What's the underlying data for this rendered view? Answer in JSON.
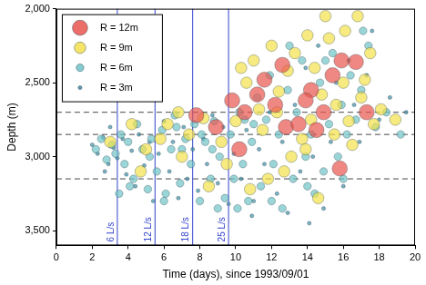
{
  "chart_data": {
    "type": "bubble",
    "x_label": "Time (days), since 1993/09/01",
    "y_label": "Depth (m)",
    "xlim": [
      0,
      20
    ],
    "xticks": [
      0,
      2,
      4,
      6,
      8,
      10,
      12,
      14,
      16,
      18,
      20
    ],
    "ylim": [
      2000,
      3600
    ],
    "yticks": [
      2000,
      2500,
      3000,
      3500
    ],
    "y_reversed": true,
    "grid": false,
    "legend": "top-left",
    "vlines": [
      {
        "x": 3.4,
        "label": "6 L/s"
      },
      {
        "x": 5.5,
        "label": "12 L/s"
      },
      {
        "x": 7.6,
        "label": "18 L/s"
      },
      {
        "x": 9.6,
        "label": "25 L/s"
      }
    ],
    "hlines": [
      2700,
      2850,
      3150
    ],
    "series": [
      {
        "name": "R = 12m",
        "size": 12,
        "color": "#e8554e",
        "points": [
          [
            9.8,
            2620
          ],
          [
            10.5,
            2700
          ],
          [
            11.6,
            2480
          ],
          [
            12.2,
            2650
          ],
          [
            12.8,
            2800
          ],
          [
            13.5,
            2780
          ],
          [
            14.2,
            2550
          ],
          [
            14.9,
            2700
          ],
          [
            15.4,
            2450
          ],
          [
            15.9,
            2350
          ],
          [
            16.7,
            2360
          ],
          [
            12.6,
            2380
          ],
          [
            15.8,
            3080
          ],
          [
            10.2,
            2950
          ],
          [
            13.9,
            2620
          ],
          [
            11.2,
            2580
          ],
          [
            17.3,
            2700
          ],
          [
            14.5,
            2820
          ],
          [
            8.9,
            2800
          ],
          [
            7.8,
            2720
          ]
        ]
      },
      {
        "name": "R = 9m",
        "size": 9,
        "color": "#f2e14b",
        "points": [
          [
            3.0,
            2900
          ],
          [
            4.2,
            2780
          ],
          [
            5.0,
            2950
          ],
          [
            6.2,
            2780
          ],
          [
            6.8,
            2700
          ],
          [
            7.4,
            2850
          ],
          [
            8.2,
            2740
          ],
          [
            9.2,
            2900
          ],
          [
            10.0,
            2760
          ],
          [
            10.6,
            2500
          ],
          [
            11.0,
            2350
          ],
          [
            11.5,
            2820
          ],
          [
            12.0,
            2250
          ],
          [
            12.4,
            2560
          ],
          [
            12.9,
            2420
          ],
          [
            13.3,
            2300
          ],
          [
            13.7,
            2880
          ],
          [
            14.0,
            2180
          ],
          [
            14.4,
            2400
          ],
          [
            14.8,
            2580
          ],
          [
            15.2,
            2200
          ],
          [
            15.6,
            2650
          ],
          [
            16.0,
            2500
          ],
          [
            16.3,
            2760
          ],
          [
            16.8,
            2050
          ],
          [
            17.2,
            2480
          ],
          [
            17.7,
            2780
          ],
          [
            18.1,
            2680
          ],
          [
            18.9,
            2750
          ],
          [
            15.0,
            2050
          ],
          [
            13.1,
            3000
          ],
          [
            11.8,
            3150
          ],
          [
            10.8,
            3220
          ],
          [
            14.6,
            3280
          ],
          [
            9.5,
            3050
          ],
          [
            8.5,
            3200
          ],
          [
            7.0,
            3000
          ],
          [
            5.8,
            2880
          ],
          [
            4.7,
            3100
          ],
          [
            12.3,
            2700
          ],
          [
            13.9,
            2950
          ],
          [
            16.5,
            2920
          ],
          [
            17.5,
            2300
          ],
          [
            11.3,
            2680
          ],
          [
            10.3,
            2400
          ],
          [
            14.2,
            2750
          ],
          [
            15.5,
            2850
          ],
          [
            16.1,
            2150
          ],
          [
            17.0,
            2600
          ],
          [
            12.7,
            3100
          ]
        ]
      },
      {
        "name": "R = 6m",
        "size": 6,
        "color": "#6fc3c8",
        "points": [
          [
            2.2,
            2950
          ],
          [
            2.5,
            2880
          ],
          [
            2.8,
            3020
          ],
          [
            3.1,
            2920
          ],
          [
            3.3,
            2980
          ],
          [
            3.6,
            2850
          ],
          [
            3.8,
            3050
          ],
          [
            4.0,
            2900
          ],
          [
            4.3,
            3150
          ],
          [
            4.5,
            2780
          ],
          [
            4.8,
            2950
          ],
          [
            5.1,
            3220
          ],
          [
            5.3,
            2880
          ],
          [
            5.6,
            3100
          ],
          [
            5.9,
            2820
          ],
          [
            6.1,
            3250
          ],
          [
            6.4,
            2950
          ],
          [
            6.6,
            2720
          ],
          [
            6.9,
            3180
          ],
          [
            7.2,
            2880
          ],
          [
            7.5,
            3050
          ],
          [
            7.7,
            2780
          ],
          [
            8.0,
            3300
          ],
          [
            8.3,
            2900
          ],
          [
            8.6,
            3150
          ],
          [
            8.8,
            2760
          ],
          [
            9.1,
            3000
          ],
          [
            9.4,
            3280
          ],
          [
            9.7,
            2850
          ],
          [
            9.9,
            3150
          ],
          [
            10.2,
            2700
          ],
          [
            10.4,
            3050
          ],
          [
            10.7,
            3300
          ],
          [
            10.9,
            2900
          ],
          [
            11.2,
            2600
          ],
          [
            11.4,
            3200
          ],
          [
            11.7,
            2750
          ],
          [
            11.9,
            2450
          ],
          [
            12.1,
            3050
          ],
          [
            12.4,
            2850
          ],
          [
            12.6,
            3350
          ],
          [
            12.9,
            2550
          ],
          [
            13.2,
            3150
          ],
          [
            13.4,
            2700
          ],
          [
            13.7,
            2350
          ],
          [
            13.9,
            3000
          ],
          [
            14.2,
            2850
          ],
          [
            14.4,
            3250
          ],
          [
            14.7,
            2500
          ],
          [
            14.9,
            3100
          ],
          [
            15.2,
            2780
          ],
          [
            15.4,
            2300
          ],
          [
            15.7,
            3000
          ],
          [
            15.9,
            2650
          ],
          [
            16.2,
            2850
          ],
          [
            16.4,
            2450
          ],
          [
            16.7,
            2750
          ],
          [
            17.0,
            2550
          ],
          [
            17.4,
            2250
          ],
          [
            17.8,
            2800
          ],
          [
            18.4,
            2700
          ],
          [
            19.2,
            2850
          ],
          [
            3.5,
            3250
          ],
          [
            4.1,
            3200
          ],
          [
            6.0,
            3300
          ],
          [
            7.0,
            2950
          ],
          [
            8.1,
            2850
          ],
          [
            9.0,
            3350
          ],
          [
            10.1,
            3350
          ],
          [
            11.0,
            2780
          ],
          [
            12.0,
            3300
          ],
          [
            13.0,
            2250
          ],
          [
            14.0,
            3200
          ],
          [
            15.0,
            2350
          ],
          [
            16.0,
            3150
          ],
          [
            17.1,
            2150
          ],
          [
            5.2,
            3000
          ],
          [
            6.7,
            2800
          ],
          [
            8.7,
            2950
          ],
          [
            10.5,
            2750
          ]
        ]
      },
      {
        "name": "R = 3m",
        "size": 3,
        "color": "#3f8fa8",
        "points": [
          [
            2.0,
            2920
          ],
          [
            2.3,
            2980
          ],
          [
            2.6,
            2870
          ],
          [
            2.9,
            3050
          ],
          [
            3.2,
            2940
          ],
          [
            3.4,
            3010
          ],
          [
            3.7,
            2880
          ],
          [
            3.9,
            3120
          ],
          [
            4.2,
            2960
          ],
          [
            4.4,
            3200
          ],
          [
            4.6,
            2850
          ],
          [
            4.9,
            3060
          ],
          [
            5.2,
            2900
          ],
          [
            5.4,
            3300
          ],
          [
            5.7,
            2980
          ],
          [
            6.0,
            2760
          ],
          [
            6.3,
            3100
          ],
          [
            6.5,
            2900
          ],
          [
            6.8,
            3280
          ],
          [
            7.1,
            2800
          ],
          [
            7.3,
            3150
          ],
          [
            7.6,
            2950
          ],
          [
            7.9,
            3230
          ],
          [
            8.2,
            2880
          ],
          [
            8.4,
            3050
          ],
          [
            8.7,
            2720
          ],
          [
            9.0,
            3180
          ],
          [
            9.3,
            2800
          ],
          [
            9.6,
            3320
          ],
          [
            9.9,
            2980
          ],
          [
            10.3,
            3150
          ],
          [
            10.6,
            2820
          ],
          [
            10.9,
            3400
          ],
          [
            11.3,
            2950
          ],
          [
            11.6,
            3050
          ],
          [
            11.9,
            2700
          ],
          [
            12.3,
            3250
          ],
          [
            12.6,
            2900
          ],
          [
            12.9,
            3380
          ],
          [
            13.3,
            2650
          ],
          [
            13.6,
            3100
          ],
          [
            13.9,
            2400
          ],
          [
            14.3,
            3000
          ],
          [
            14.6,
            2250
          ],
          [
            14.9,
            3350
          ],
          [
            15.3,
            2900
          ],
          [
            15.6,
            2500
          ],
          [
            16.0,
            3200
          ],
          [
            16.3,
            2350
          ],
          [
            16.6,
            2650
          ],
          [
            16.9,
            2900
          ],
          [
            17.3,
            2450
          ],
          [
            17.6,
            2150
          ],
          [
            18.0,
            2750
          ],
          [
            18.6,
            2600
          ],
          [
            19.5,
            2700
          ],
          [
            2.7,
            3100
          ],
          [
            3.0,
            2800
          ],
          [
            11.0,
            3300
          ],
          [
            14.1,
            3450
          ]
        ]
      }
    ]
  }
}
